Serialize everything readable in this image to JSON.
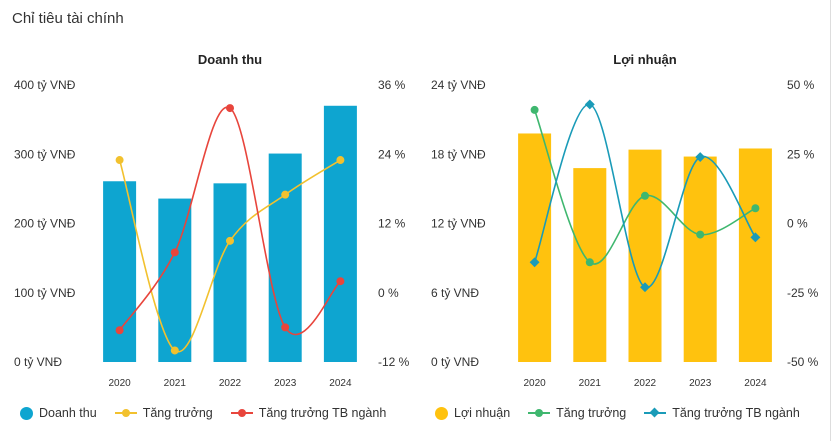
{
  "page": {
    "section_title": "Chỉ tiêu tài chính"
  },
  "colors": {
    "revenue_bar": "#0ea5d0",
    "revenue_growth": "#f2c12e",
    "revenue_industry": "#e8453c",
    "profit_bar": "#ffc20e",
    "profit_growth": "#3fb76f",
    "profit_industry": "#1a9bb8"
  },
  "chart_data": [
    {
      "type": "bar",
      "title": "Doanh thu",
      "categories": [
        "2020",
        "2021",
        "2022",
        "2023",
        "2024"
      ],
      "left_axis": {
        "ticks": [
          "400 tỷ VNĐ",
          "300 tỷ VNĐ",
          "200 tỷ VNĐ",
          "100 tỷ VNĐ",
          "0 tỷ VNĐ"
        ],
        "ylim": [
          0,
          400
        ]
      },
      "right_axis": {
        "ticks": [
          "36 %",
          "24 %",
          "12 %",
          "0 %",
          "-12 %"
        ],
        "ylim": [
          -12,
          36
        ]
      },
      "series": [
        {
          "name": "Doanh thu",
          "kind": "bar",
          "axis": "left",
          "values": [
            261,
            236,
            258,
            301,
            370
          ]
        },
        {
          "name": "Tăng trưởng",
          "kind": "line",
          "axis": "right",
          "values": [
            23,
            -10,
            9,
            17,
            23
          ]
        },
        {
          "name": "Tăng trưởng TB ngành",
          "kind": "line",
          "axis": "right",
          "values": [
            -6.5,
            7,
            32,
            -6,
            2
          ]
        }
      ],
      "grid": false,
      "legend_position": "bottom"
    },
    {
      "type": "bar",
      "title": "Lợi nhuận",
      "categories": [
        "2020",
        "2021",
        "2022",
        "2023",
        "2024"
      ],
      "left_axis": {
        "ticks": [
          "24 tỷ VNĐ",
          "18 tỷ VNĐ",
          "12 tỷ VNĐ",
          "6 tỷ VNĐ",
          "0 tỷ VNĐ"
        ],
        "ylim": [
          0,
          24
        ]
      },
      "right_axis": {
        "ticks": [
          "50 %",
          "25 %",
          "0 %",
          "-25 %",
          "-50 %"
        ],
        "ylim": [
          -50,
          50
        ]
      },
      "series": [
        {
          "name": "Lợi nhuận",
          "kind": "bar",
          "axis": "left",
          "values": [
            19.8,
            16.8,
            18.4,
            17.8,
            18.5
          ]
        },
        {
          "name": "Tăng trưởng",
          "kind": "line",
          "axis": "right",
          "values": [
            41,
            -14,
            10,
            -4,
            5.5
          ]
        },
        {
          "name": "Tăng trưởng TB ngành",
          "kind": "line",
          "axis": "right",
          "values": [
            -14,
            43,
            -23,
            24,
            -5
          ]
        }
      ],
      "grid": false,
      "legend_position": "bottom"
    }
  ]
}
